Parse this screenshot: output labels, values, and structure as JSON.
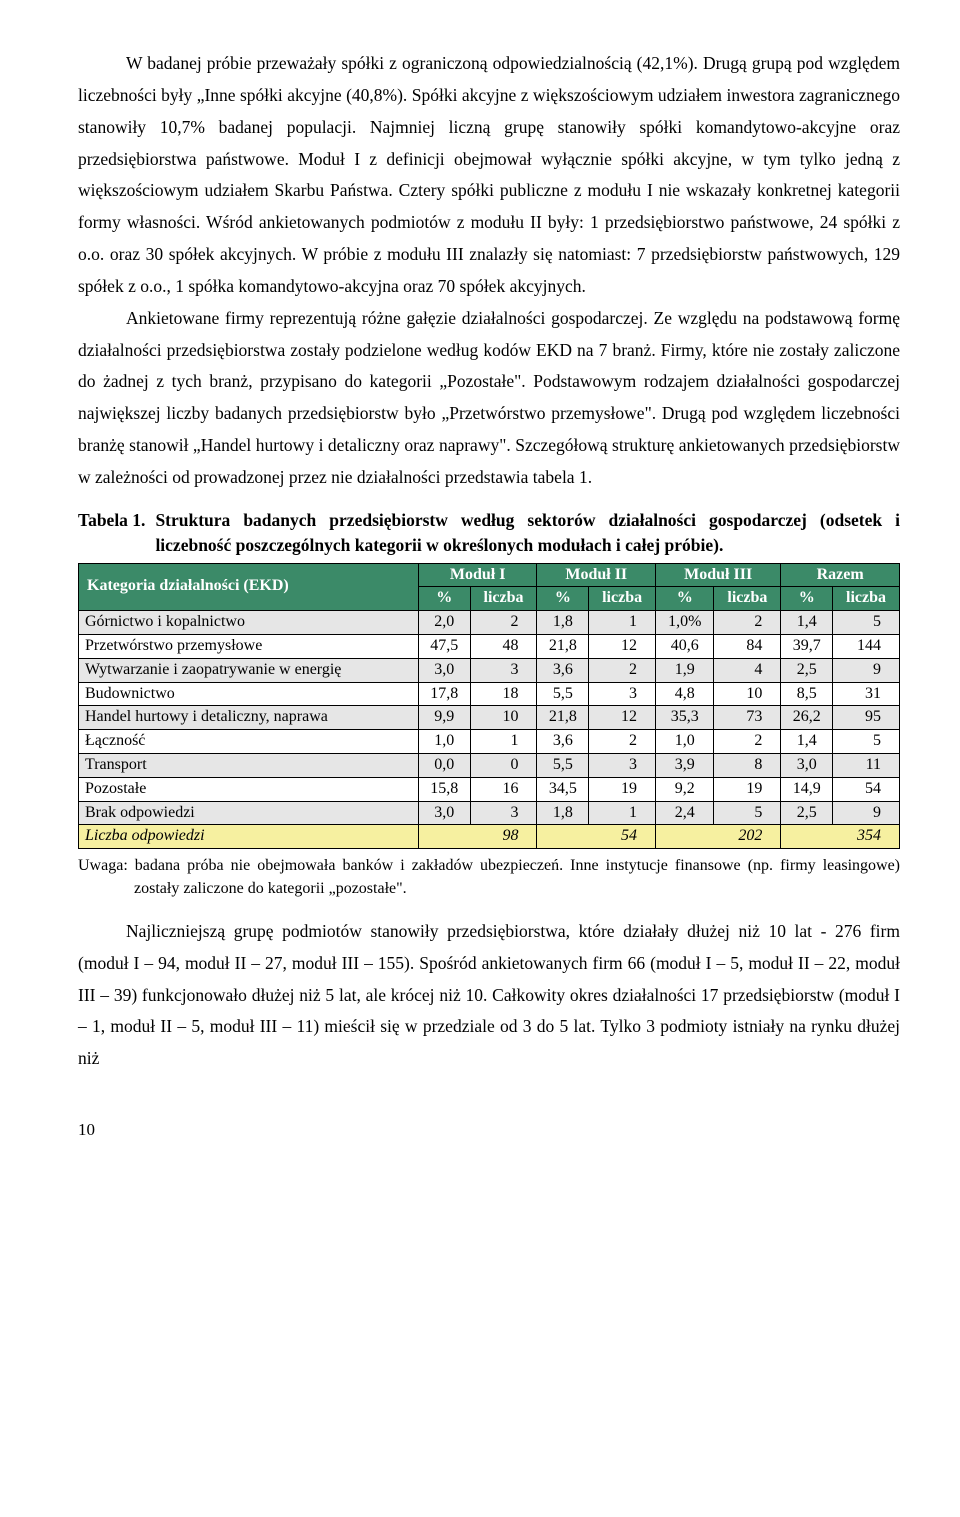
{
  "paragraphs": {
    "p1": "W badanej próbie przeważały spółki z ograniczoną odpowiedzialnością (42,1%). Drugą grupą pod względem liczebności były „Inne spółki akcyjne (40,8%). Spółki akcyjne z większościowym udziałem inwestora zagranicznego stanowiły 10,7% badanej populacji. Najmniej liczną grupę stanowiły spółki komandytowo-akcyjne oraz przedsiębiorstwa państwowe. Moduł I z definicji obejmował wyłącznie spółki akcyjne, w tym tylko jedną z większościowym udziałem Skarbu Państwa. Cztery spółki publiczne z modułu I nie wskazały konkretnej kategorii formy własności. Wśród ankietowanych podmiotów z modułu II były: 1 przedsiębiorstwo państwowe, 24 spółki z o.o. oraz 30 spółek akcyjnych. W próbie z modułu III znalazły się natomiast: 7 przedsiębiorstw państwowych, 129 spółek z o.o., 1 spółka komandytowo-akcyjna oraz 70 spółek akcyjnych.",
    "p2": "Ankietowane firmy reprezentują różne gałęzie działalności gospodarczej. Ze względu na podstawową formę działalności przedsiębiorstwa zostały podzielone według kodów EKD na 7 branż. Firmy, które nie zostały zaliczone do żadnej z tych branż, przypisano do kategorii „Pozostałe\". Podstawowym rodzajem działalności gospodarczej największej liczby badanych przedsiębiorstw było „Przetwórstwo przemysłowe\". Drugą pod względem liczebności branżę stanowił „Handel hurtowy i detaliczny oraz naprawy\". Szczegółową strukturę ankietowanych przedsiębiorstw w zależności od prowadzonej przez nie działalności przedstawia tabela 1.",
    "p3": "Najliczniejszą grupę podmiotów stanowiły przedsiębiorstwa, które działały dłużej niż 10 lat - 276 firm (moduł I – 94, moduł II – 27, moduł III – 155). Spośród ankietowanych firm 66 (moduł I – 5, moduł II – 22, moduł III – 39) funkcjonowało dłużej niż 5 lat, ale krócej niż 10. Całkowity okres działalności 17 przedsiębiorstw (moduł I – 1, moduł II – 5, moduł III – 11) mieścił się w przedziale od 3 do 5 lat. Tylko 3 podmioty istniały na rynku dłużej niż"
  },
  "table": {
    "caption_label": "Tabela 1.",
    "caption_text": "Struktura badanych przedsiębiorstw według sektorów działalności gospodarczej (odsetek i liczebność poszczególnych kategorii w określonych modułach i całej próbie).",
    "header_bg": "#3b8a68",
    "alt_row_bg": "#e6e6e6",
    "total_row_bg": "#f6f0a0",
    "row_header": "Kategoria działalności (EKD)",
    "modules": [
      "Moduł I",
      "Moduł II",
      "Moduł III",
      "Razem"
    ],
    "subcols": [
      "%",
      "liczba"
    ],
    "rows": [
      {
        "cat": "Górnictwo i kopalnictwo",
        "m1p": "2,0",
        "m1n": "2",
        "m2p": "1,8",
        "m2n": "1",
        "m3p": "1,0%",
        "m3n": "2",
        "rp": "1,4",
        "rn": "5"
      },
      {
        "cat": "Przetwórstwo przemysłowe",
        "m1p": "47,5",
        "m1n": "48",
        "m2p": "21,8",
        "m2n": "12",
        "m3p": "40,6",
        "m3n": "84",
        "rp": "39,7",
        "rn": "144"
      },
      {
        "cat": "Wytwarzanie i zaopatrywanie w energię",
        "m1p": "3,0",
        "m1n": "3",
        "m2p": "3,6",
        "m2n": "2",
        "m3p": "1,9",
        "m3n": "4",
        "rp": "2,5",
        "rn": "9"
      },
      {
        "cat": "Budownictwo",
        "m1p": "17,8",
        "m1n": "18",
        "m2p": "5,5",
        "m2n": "3",
        "m3p": "4,8",
        "m3n": "10",
        "rp": "8,5",
        "rn": "31"
      },
      {
        "cat": "Handel hurtowy i detaliczny, naprawa",
        "m1p": "9,9",
        "m1n": "10",
        "m2p": "21,8",
        "m2n": "12",
        "m3p": "35,3",
        "m3n": "73",
        "rp": "26,2",
        "rn": "95"
      },
      {
        "cat": "Łączność",
        "m1p": "1,0",
        "m1n": "1",
        "m2p": "3,6",
        "m2n": "2",
        "m3p": "1,0",
        "m3n": "2",
        "rp": "1,4",
        "rn": "5"
      },
      {
        "cat": "Transport",
        "m1p": "0,0",
        "m1n": "0",
        "m2p": "5,5",
        "m2n": "3",
        "m3p": "3,9",
        "m3n": "8",
        "rp": "3,0",
        "rn": "11"
      },
      {
        "cat": "Pozostałe",
        "m1p": "15,8",
        "m1n": "16",
        "m2p": "34,5",
        "m2n": "19",
        "m3p": "9,2",
        "m3n": "19",
        "rp": "14,9",
        "rn": "54"
      },
      {
        "cat": "Brak odpowiedzi",
        "m1p": "3,0",
        "m1n": "3",
        "m2p": "1,8",
        "m2n": "1",
        "m3p": "2,4",
        "m3n": "5",
        "rp": "2,5",
        "rn": "9"
      }
    ],
    "totals": {
      "cat": "Liczba odpowiedzi",
      "m1": "98",
      "m2": "54",
      "m3": "202",
      "r": "354"
    }
  },
  "note": "Uwaga: badana próba nie obejmowała banków i zakładów ubezpieczeń. Inne instytucje finansowe (np. firmy leasingowe) zostały zaliczone do kategorii „pozostałe\".",
  "page_number": "10"
}
